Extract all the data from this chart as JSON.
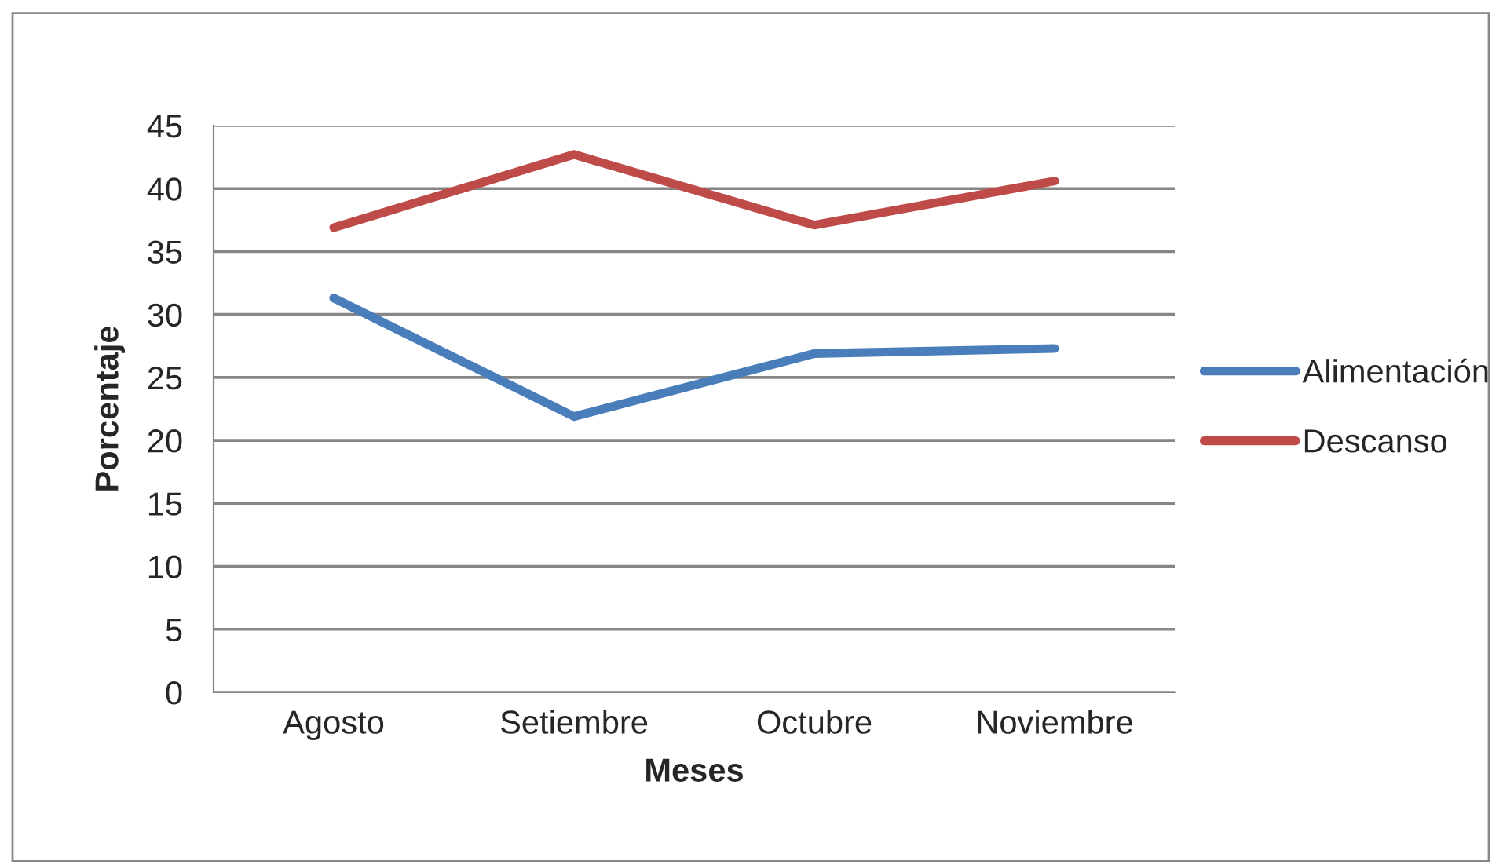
{
  "chart_data": {
    "type": "line",
    "xlabel": "Meses",
    "ylabel": "Porcentaje",
    "categories": [
      "Agosto",
      "Setiembre",
      "Octubre",
      "Noviembre"
    ],
    "series": [
      {
        "name": "Alimentación",
        "color": "#4a7ebb",
        "values": [
          31.3,
          21.9,
          26.9,
          27.3
        ]
      },
      {
        "name": "Descanso",
        "color": "#be4b48",
        "values": [
          36.9,
          42.7,
          37.1,
          40.6
        ]
      }
    ],
    "ylim": [
      0,
      45
    ],
    "yticks": [
      0,
      5,
      10,
      15,
      20,
      25,
      30,
      35,
      40,
      45
    ],
    "grid": "y",
    "legend": "right",
    "marker": "none"
  }
}
